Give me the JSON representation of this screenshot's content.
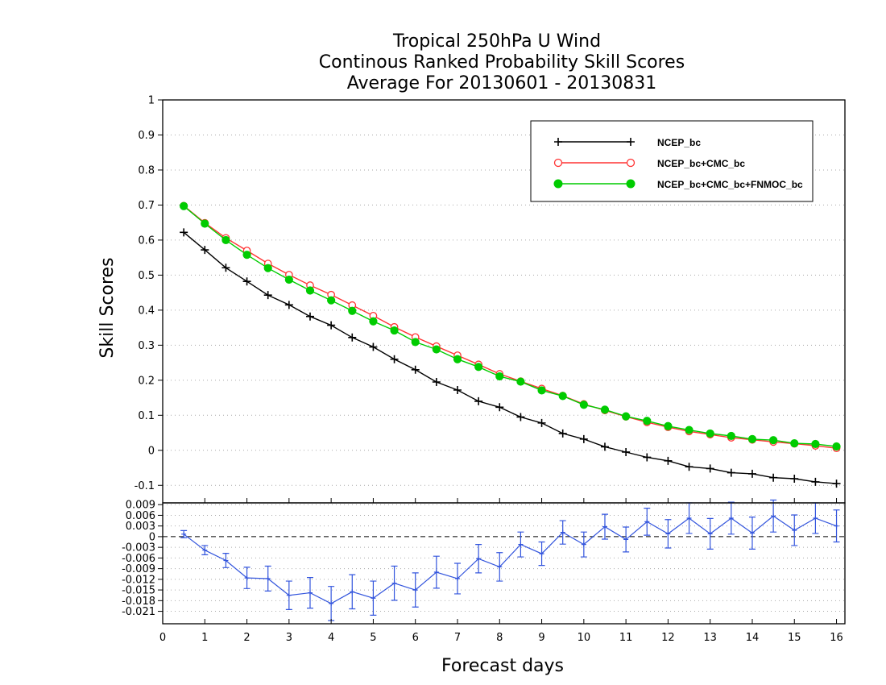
{
  "chart_data": [
    {
      "type": "line",
      "title_lines": [
        "Tropical 250hPa U Wind",
        "Continous Ranked Probability Skill Scores",
        "Average For 20130601 - 20130831"
      ],
      "ylabel": "Skill Scores",
      "xlabel": "",
      "ylim": [
        -0.15,
        1.0
      ],
      "yticks": [
        "1",
        "0.9",
        "0.8",
        "0.7",
        "0.6",
        "0.5",
        "0.4",
        "0.3",
        "0.2",
        "0.1",
        "0",
        "-0.1"
      ],
      "grid": "horizontal dotted",
      "legend_position": "top-right",
      "x": [
        0.5,
        1,
        1.5,
        2,
        2.5,
        3,
        3.5,
        4,
        4.5,
        5,
        5.5,
        6,
        6.5,
        7,
        7.5,
        8,
        8.5,
        9,
        9.5,
        10,
        10.5,
        11,
        11.5,
        12,
        12.5,
        13,
        13.5,
        14,
        14.5,
        15,
        15.5,
        16
      ],
      "series": [
        {
          "name": "NCEP_bc",
          "color": "#000000",
          "marker": "plus",
          "values": [
            0.622,
            0.572,
            0.521,
            0.482,
            0.443,
            0.415,
            0.382,
            0.357,
            0.322,
            0.295,
            0.26,
            0.23,
            0.195,
            0.172,
            0.14,
            0.123,
            0.095,
            0.078,
            0.048,
            0.032,
            0.01,
            -0.005,
            -0.02,
            -0.03,
            -0.047,
            -0.052,
            -0.064,
            -0.067,
            -0.078,
            -0.081,
            -0.09,
            -0.095
          ]
        },
        {
          "name": "NCEP_bc+CMC_bc",
          "color": "#ff3333",
          "marker": "open-circle",
          "values": [
            0.698,
            0.649,
            0.606,
            0.57,
            0.533,
            0.501,
            0.471,
            0.444,
            0.414,
            0.384,
            0.352,
            0.323,
            0.297,
            0.271,
            0.245,
            0.218,
            0.197,
            0.176,
            0.156,
            0.132,
            0.114,
            0.096,
            0.08,
            0.066,
            0.054,
            0.045,
            0.036,
            0.03,
            0.024,
            0.019,
            0.013,
            0.006
          ]
        },
        {
          "name": "NCEP_bc+CMC_bc+FNMOC_bc",
          "color": "#00cc00",
          "marker": "filled-circle",
          "values": [
            0.697,
            0.647,
            0.6,
            0.558,
            0.52,
            0.487,
            0.456,
            0.428,
            0.398,
            0.368,
            0.342,
            0.309,
            0.288,
            0.26,
            0.238,
            0.211,
            0.196,
            0.171,
            0.155,
            0.13,
            0.116,
            0.097,
            0.084,
            0.069,
            0.058,
            0.048,
            0.041,
            0.032,
            0.029,
            0.02,
            0.018,
            0.011
          ]
        }
      ]
    },
    {
      "type": "line",
      "xlabel": "Forecast days",
      "ylim": [
        -0.0245,
        0.0095
      ],
      "yticks": [
        "0.009",
        "0.006",
        "0.003",
        "0",
        "-0.003",
        "-0.006",
        "-0.009",
        "-0.012",
        "-0.015",
        "-0.018",
        "-0.021"
      ],
      "xticks": [
        "0",
        "1",
        "2",
        "3",
        "4",
        "5",
        "6",
        "7",
        "8",
        "9",
        "10",
        "11",
        "12",
        "13",
        "14",
        "15",
        "16"
      ],
      "grid": "horizontal dotted",
      "zero_line": "dashed",
      "x": [
        0.5,
        1,
        1.5,
        2,
        2.5,
        3,
        3.5,
        4,
        4.5,
        5,
        5.5,
        6,
        6.5,
        7,
        7.5,
        8,
        8.5,
        9,
        9.5,
        10,
        10.5,
        11,
        11.5,
        12,
        12.5,
        13,
        13.5,
        14,
        14.5,
        15,
        15.5,
        16
      ],
      "series": [
        {
          "color": "#3355dd",
          "values": [
            0.0007,
            -0.0038,
            -0.0067,
            -0.0116,
            -0.0118,
            -0.0165,
            -0.0158,
            -0.0188,
            -0.0155,
            -0.0173,
            -0.0131,
            -0.015,
            -0.01,
            -0.0118,
            -0.0062,
            -0.0085,
            -0.0022,
            -0.0048,
            0.0012,
            -0.0022,
            0.0028,
            -0.0008,
            0.0042,
            0.0008,
            0.0052,
            0.0008,
            0.0052,
            0.001,
            0.0058,
            0.0018,
            0.0052,
            0.003
          ],
          "error_halfwidths": [
            0.001,
            0.0013,
            0.002,
            0.003,
            0.0035,
            0.004,
            0.0043,
            0.0048,
            0.0048,
            0.0048,
            0.0048,
            0.0048,
            0.0045,
            0.0043,
            0.004,
            0.004,
            0.0035,
            0.0033,
            0.0033,
            0.0035,
            0.0035,
            0.0035,
            0.0038,
            0.004,
            0.0043,
            0.0043,
            0.0045,
            0.0045,
            0.0045,
            0.0043,
            0.0043,
            0.0045
          ]
        }
      ]
    }
  ]
}
